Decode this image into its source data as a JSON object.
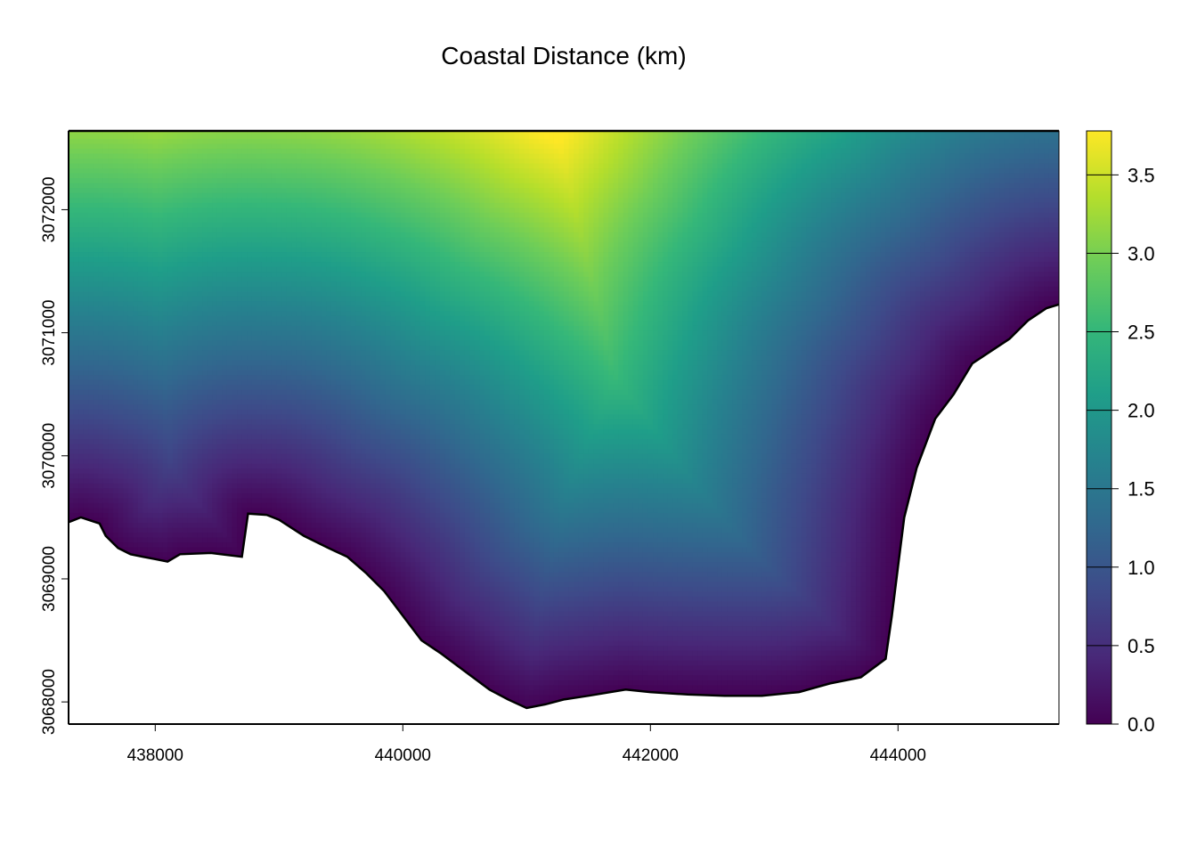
{
  "chart_data": {
    "type": "heatmap",
    "title": "Coastal Distance (km)",
    "xlabel": "",
    "ylabel": "",
    "xlim": [
      437300,
      445300
    ],
    "ylim": [
      3067820,
      3072640
    ],
    "x_ticks": [
      438000,
      440000,
      442000,
      444000
    ],
    "x_tick_labels": [
      "438000",
      "440000",
      "442000",
      "444000"
    ],
    "y_ticks": [
      3068000,
      3069000,
      3070000,
      3071000,
      3072000
    ],
    "y_tick_labels": [
      "3068000",
      "3069000",
      "3070000",
      "3071000",
      "3072000"
    ],
    "colorbar": {
      "min": 0,
      "max": 3.78,
      "ticks": [
        0.0,
        0.5,
        1.0,
        1.5,
        2.0,
        2.5,
        3.0,
        3.5
      ],
      "tick_labels": [
        "0.0",
        "0.5",
        "1.0",
        "1.5",
        "2.0",
        "2.5",
        "3.0",
        "3.5"
      ],
      "palette": "viridis",
      "colors": [
        "#440154",
        "#482878",
        "#3E4A89",
        "#31688E",
        "#26828E",
        "#1F9E89",
        "#35B779",
        "#6DCD59",
        "#B4DE2C",
        "#FDE725"
      ]
    },
    "coastline": [
      [
        437300,
        3069460
      ],
      [
        437400,
        3069500
      ],
      [
        437550,
        3069450
      ],
      [
        437600,
        3069350
      ],
      [
        437700,
        3069250
      ],
      [
        437800,
        3069200
      ],
      [
        437900,
        3069180
      ],
      [
        438000,
        3069160
      ],
      [
        438100,
        3069140
      ],
      [
        438200,
        3069200
      ],
      [
        438450,
        3069210
      ],
      [
        438700,
        3069180
      ],
      [
        438750,
        3069530
      ],
      [
        438900,
        3069520
      ],
      [
        439000,
        3069480
      ],
      [
        439200,
        3069350
      ],
      [
        439400,
        3069250
      ],
      [
        439550,
        3069180
      ],
      [
        439700,
        3069050
      ],
      [
        439850,
        3068900
      ],
      [
        440000,
        3068700
      ],
      [
        440150,
        3068500
      ],
      [
        440300,
        3068400
      ],
      [
        440500,
        3068250
      ],
      [
        440700,
        3068100
      ],
      [
        440850,
        3068020
      ],
      [
        441000,
        3067950
      ],
      [
        441150,
        3067980
      ],
      [
        441300,
        3068020
      ],
      [
        441500,
        3068050
      ],
      [
        441800,
        3068100
      ],
      [
        442000,
        3068080
      ],
      [
        442300,
        3068060
      ],
      [
        442600,
        3068050
      ],
      [
        442900,
        3068050
      ],
      [
        443200,
        3068080
      ],
      [
        443450,
        3068150
      ],
      [
        443700,
        3068200
      ],
      [
        443900,
        3068350
      ],
      [
        443950,
        3068700
      ],
      [
        444000,
        3069100
      ],
      [
        444050,
        3069500
      ],
      [
        444150,
        3069900
      ],
      [
        444300,
        3070300
      ],
      [
        444450,
        3070500
      ],
      [
        444600,
        3070750
      ],
      [
        444750,
        3070850
      ],
      [
        444900,
        3070950
      ],
      [
        445050,
        3071100
      ],
      [
        445200,
        3071200
      ],
      [
        445300,
        3071230
      ]
    ]
  }
}
